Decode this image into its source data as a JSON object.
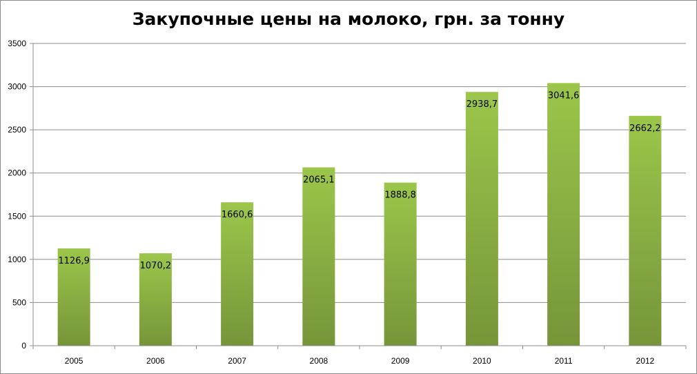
{
  "chart_data": {
    "type": "bar",
    "title": "Закупочные цены на молоко, грн. за тонну",
    "categories": [
      "2005",
      "2006",
      "2007",
      "2008",
      "2009",
      "2010",
      "2011",
      "2012"
    ],
    "values": [
      1126.9,
      1070.2,
      1660.6,
      2065.1,
      1888.8,
      2938.7,
      3041.6,
      2662.2
    ],
    "value_labels": [
      "1126,9",
      "1070,2",
      "1660,6",
      "2065,1",
      "1888,8",
      "2938,7",
      "3041,6",
      "2662,2"
    ],
    "yticks": [
      "0",
      "500",
      "1000",
      "1500",
      "2000",
      "2500",
      "3000",
      "3500"
    ],
    "ylim": [
      0,
      3500
    ],
    "grid": true,
    "legend": "none",
    "colors": {
      "bar_top": "#9bc64a",
      "bar_bottom": "#76953a",
      "grid": "#8c8c8c"
    }
  }
}
